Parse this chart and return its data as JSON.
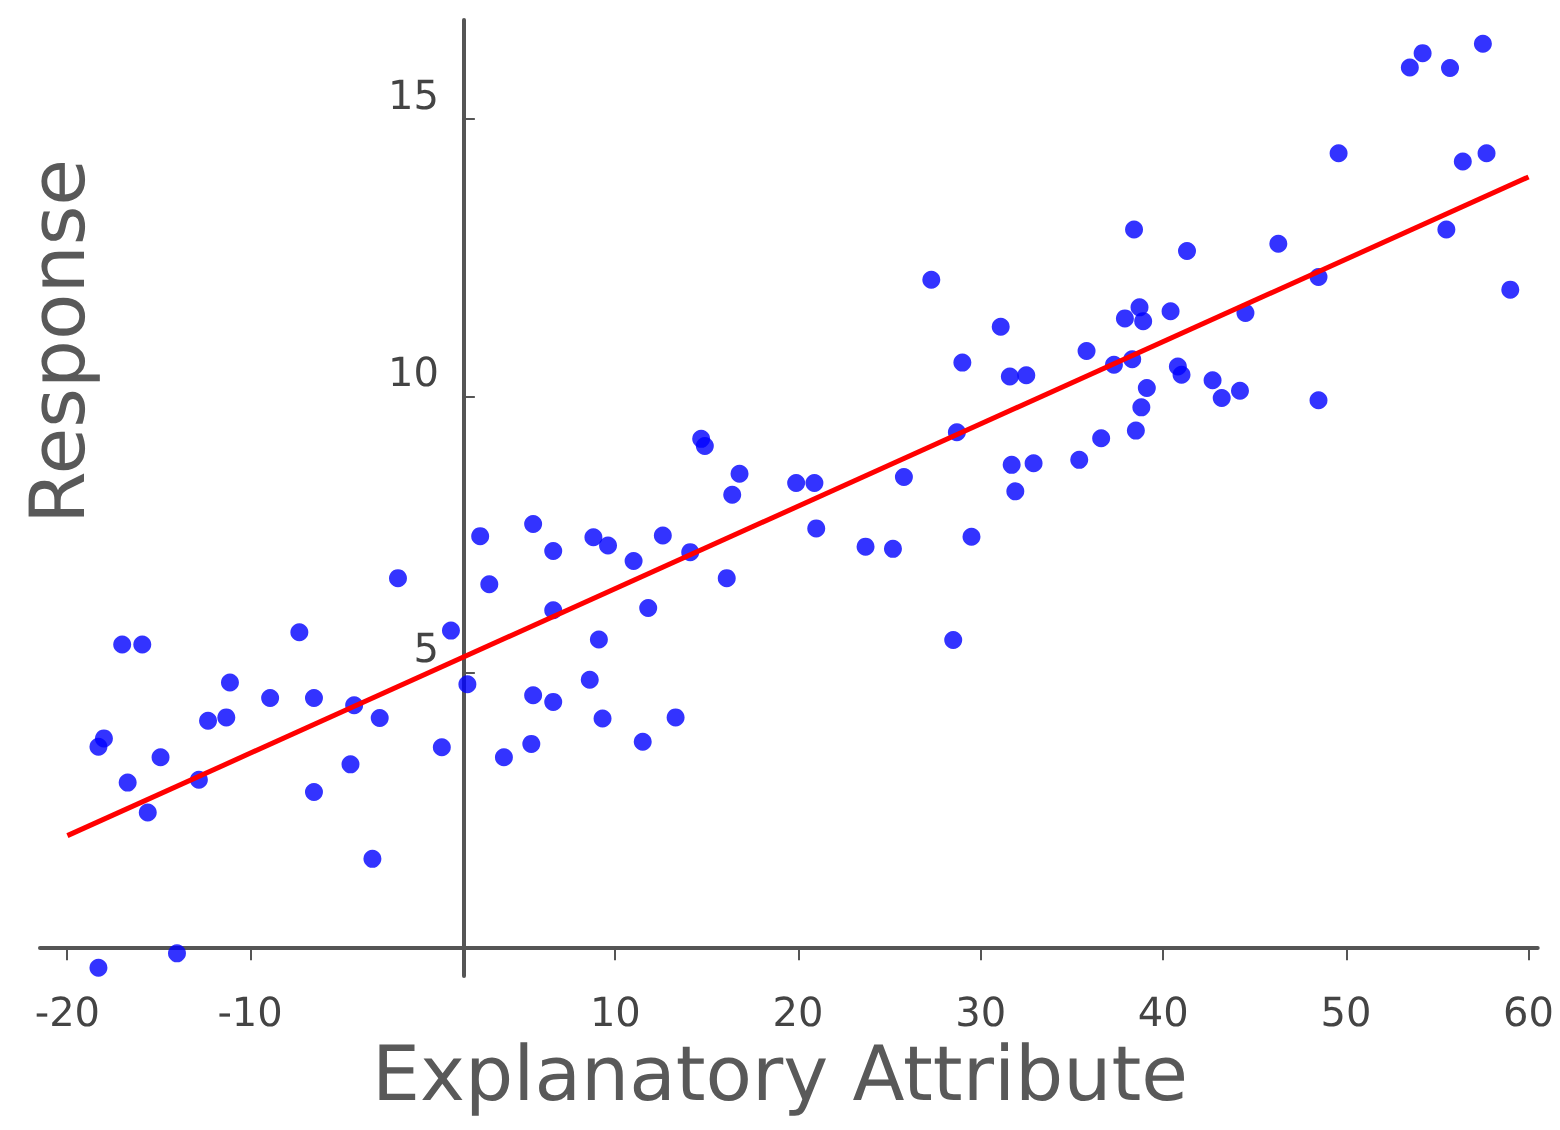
{
  "chart_data": {
    "type": "scatter",
    "xlabel": "Explanatory Attribute",
    "ylabel": "Response",
    "xlim": [
      -21.5,
      60.5
    ],
    "ylim": [
      -0.5,
      16.8
    ],
    "xticks": [
      -20,
      -10,
      10,
      20,
      30,
      40,
      50,
      60
    ],
    "yticks": [
      5,
      10,
      15
    ],
    "grid": false,
    "series": [
      {
        "marker": "circle",
        "color": "#0000ff",
        "x": [
          -18.3,
          -18.0,
          -17.0,
          -15.9,
          -16.7,
          -14.9,
          -15.6,
          -12.8,
          -12.3,
          -11.3,
          -11.1,
          -8.9,
          -7.3,
          -6.5,
          -6.5,
          -4.5,
          -4.3,
          -2.9,
          -3.3,
          -1.9,
          -18.3,
          -14.0,
          0.5,
          1.0,
          1.9,
          3.1,
          3.9,
          2.6,
          5.5,
          6.6,
          6.6,
          5.5,
          6.6,
          5.4,
          8.8,
          9.6,
          9.1,
          8.6,
          9.3,
          11.0,
          11.8,
          11.5,
          12.6,
          13.3,
          14.1,
          14.7,
          14.9,
          16.1,
          16.4,
          16.8,
          19.9,
          20.9,
          21.0,
          23.7,
          25.2,
          25.8,
          28.5,
          27.3,
          31.1,
          29.0,
          31.6,
          32.5,
          28.7,
          29.5,
          31.7,
          32.9,
          31.9,
          35.4,
          36.6,
          35.8,
          37.3,
          38.4,
          37.9,
          38.7,
          38.9,
          38.3,
          39.1,
          38.8,
          38.5,
          40.4,
          40.8,
          41.0,
          41.3,
          42.7,
          43.2,
          44.2,
          44.5,
          46.3,
          48.5,
          48.5,
          55.5,
          59.0,
          49.6,
          53.5,
          54.2,
          55.7,
          57.5,
          56.4,
          57.7
        ],
        "values": [
          3.65,
          3.8,
          5.5,
          5.5,
          3.0,
          3.46,
          2.46,
          3.05,
          4.12,
          4.18,
          4.81,
          4.53,
          5.72,
          4.53,
          2.83,
          3.33,
          4.4,
          4.17,
          1.62,
          6.7,
          -0.35,
          -0.09,
          3.64,
          5.75,
          4.78,
          6.59,
          3.46,
          7.46,
          7.68,
          7.19,
          6.12,
          4.58,
          4.46,
          3.7,
          7.44,
          7.29,
          5.59,
          4.86,
          4.16,
          7.01,
          6.16,
          3.74,
          7.47,
          4.18,
          7.17,
          9.22,
          9.09,
          6.7,
          8.21,
          8.59,
          8.42,
          8.42,
          7.6,
          7.27,
          7.23,
          8.53,
          5.58,
          12.1,
          11.25,
          10.6,
          10.35,
          10.37,
          9.34,
          7.45,
          8.75,
          8.78,
          8.27,
          8.84,
          9.23,
          10.81,
          10.56,
          13.01,
          11.4,
          11.6,
          11.35,
          10.66,
          10.14,
          9.79,
          9.37,
          11.53,
          10.53,
          10.38,
          12.62,
          10.28,
          9.96,
          10.09,
          11.5,
          12.75,
          12.15,
          9.92,
          13.01,
          11.92,
          14.39,
          15.94,
          16.2,
          15.93,
          16.37,
          14.24,
          14.39
        ]
      },
      {
        "type": "line",
        "marker": "none",
        "color": "#ff0000",
        "x": [
          -20,
          60
        ],
        "values": [
          2.04,
          13.96
        ]
      }
    ]
  }
}
